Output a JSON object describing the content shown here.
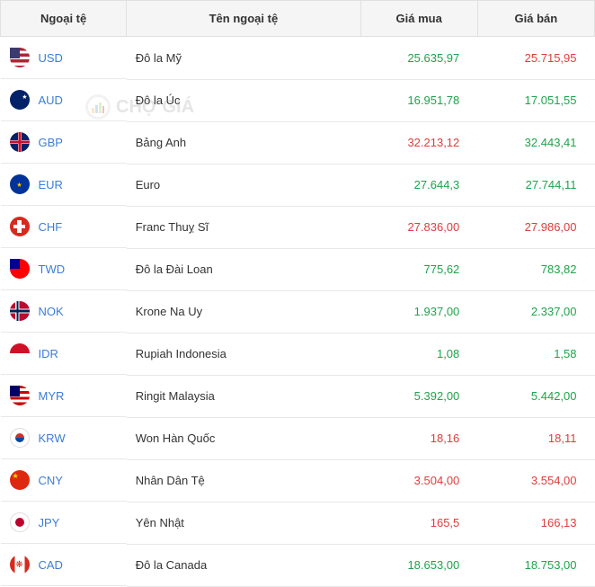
{
  "headers": {
    "col1": "Ngoại tệ",
    "col2": "Tên ngoại tệ",
    "col3": "Giá mua",
    "col4": "Giá bán"
  },
  "watermark": "CHỢ GIÁ",
  "colors": {
    "up": "#1fa34a",
    "down": "#e03c3c",
    "code": "#3b7dd8"
  },
  "rows": [
    {
      "code": "USD",
      "name": "Đô la Mỹ",
      "buy": "25.635,97",
      "buy_color": "up",
      "sell": "25.715,95",
      "sell_color": "down",
      "flag": "flag-usd"
    },
    {
      "code": "AUD",
      "name": "Đô la Úc",
      "buy": "16.951,78",
      "buy_color": "up",
      "sell": "17.051,55",
      "sell_color": "up",
      "flag": "flag-aud"
    },
    {
      "code": "GBP",
      "name": "Bảng Anh",
      "buy": "32.213,12",
      "buy_color": "down",
      "sell": "32.443,41",
      "sell_color": "up",
      "flag": "flag-gbp"
    },
    {
      "code": "EUR",
      "name": "Euro",
      "buy": "27.644,3",
      "buy_color": "up",
      "sell": "27.744,11",
      "sell_color": "up",
      "flag": "flag-eur"
    },
    {
      "code": "CHF",
      "name": "Franc Thuỵ Sĩ",
      "buy": "27.836,00",
      "buy_color": "down",
      "sell": "27.986,00",
      "sell_color": "down",
      "flag": "flag-chf"
    },
    {
      "code": "TWD",
      "name": "Đô la Đài Loan",
      "buy": "775,62",
      "buy_color": "up",
      "sell": "783,82",
      "sell_color": "up",
      "flag": "flag-twd"
    },
    {
      "code": "NOK",
      "name": "Krone Na Uy",
      "buy": "1.937,00",
      "buy_color": "up",
      "sell": "2.337,00",
      "sell_color": "up",
      "flag": "flag-nok"
    },
    {
      "code": "IDR",
      "name": "Rupiah Indonesia",
      "buy": "1,08",
      "buy_color": "up",
      "sell": "1,58",
      "sell_color": "up",
      "flag": "flag-idr"
    },
    {
      "code": "MYR",
      "name": "Ringit Malaysia",
      "buy": "5.392,00",
      "buy_color": "up",
      "sell": "5.442,00",
      "sell_color": "up",
      "flag": "flag-myr"
    },
    {
      "code": "KRW",
      "name": "Won Hàn Quốc",
      "buy": "18,16",
      "buy_color": "down",
      "sell": "18,11",
      "sell_color": "down",
      "flag": "flag-krw"
    },
    {
      "code": "CNY",
      "name": "Nhân Dân Tệ",
      "buy": "3.504,00",
      "buy_color": "down",
      "sell": "3.554,00",
      "sell_color": "down",
      "flag": "flag-cny"
    },
    {
      "code": "JPY",
      "name": "Yên Nhật",
      "buy": "165,5",
      "buy_color": "down",
      "sell": "166,13",
      "sell_color": "down",
      "flag": "flag-jpy"
    },
    {
      "code": "CAD",
      "name": "Đô la Canada",
      "buy": "18.653,00",
      "buy_color": "up",
      "sell": "18.753,00",
      "sell_color": "up",
      "flag": "flag-cad"
    }
  ]
}
